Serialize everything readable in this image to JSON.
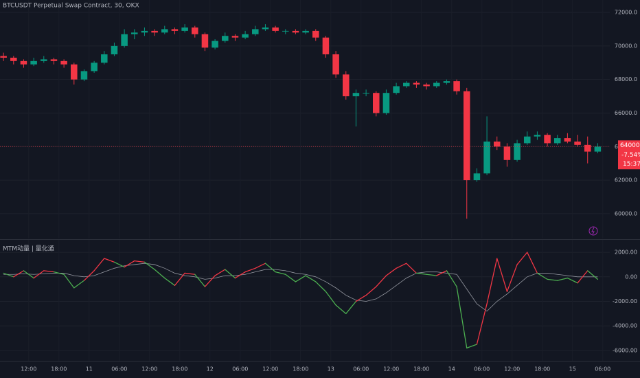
{
  "chart_data": [
    {
      "type": "candlestick",
      "title": "BTCUSDT Perpetual Swap Contract, 30, OKX",
      "up_color": "#089981",
      "down_color": "#f23645",
      "grid": true,
      "x": [
        7,
        9,
        11,
        13,
        15,
        17,
        19,
        21,
        23,
        25,
        27,
        29,
        31,
        33,
        35,
        37,
        39,
        41,
        43,
        45,
        47,
        49,
        51,
        53,
        55,
        57,
        59,
        61,
        63,
        65,
        67,
        69,
        71,
        73,
        75,
        77,
        79,
        81,
        83,
        85,
        87,
        89,
        91,
        93,
        95,
        97,
        99,
        101,
        103,
        105,
        107,
        109,
        111,
        113,
        115,
        117,
        119,
        121,
        123,
        125
      ],
      "open": [
        69400,
        69300,
        69100,
        68900,
        69100,
        69200,
        69100,
        68900,
        68000,
        68500,
        69000,
        69500,
        70000,
        70700,
        70800,
        70900,
        70800,
        71000,
        70900,
        71100,
        70700,
        69900,
        70300,
        70600,
        70500,
        70700,
        71000,
        71100,
        70900,
        70900,
        70800,
        70900,
        70500,
        69500,
        68300,
        67000,
        67200,
        67200,
        66000,
        67200,
        67600,
        67800,
        67700,
        67600,
        67800,
        67900,
        67300,
        62000,
        62400,
        64300,
        64000,
        63200,
        64200,
        64600,
        64700,
        64200,
        64500,
        64300,
        64100,
        63700
      ],
      "high": [
        69600,
        69400,
        69200,
        69300,
        69400,
        69300,
        69200,
        69000,
        68600,
        69100,
        69700,
        70200,
        71000,
        71000,
        71100,
        71000,
        71200,
        71100,
        71300,
        71200,
        70800,
        70400,
        70800,
        70700,
        70900,
        71200,
        71300,
        71200,
        71000,
        71000,
        71000,
        71000,
        70600,
        69700,
        68500,
        67400,
        67400,
        67300,
        67400,
        67800,
        67900,
        67900,
        67800,
        67900,
        68000,
        68000,
        67500,
        62700,
        65800,
        64600,
        64200,
        64400,
        64900,
        64900,
        64800,
        64700,
        64800,
        64700,
        64600,
        64200
      ],
      "low": [
        69100,
        68900,
        68700,
        68800,
        69000,
        68900,
        68700,
        67700,
        67900,
        68400,
        68900,
        69400,
        69900,
        70400,
        70600,
        70600,
        70700,
        70700,
        70800,
        70500,
        69700,
        69800,
        70200,
        70300,
        70400,
        70600,
        70900,
        70800,
        70700,
        70700,
        70700,
        70300,
        69300,
        68100,
        66800,
        65200,
        67000,
        65800,
        65900,
        67100,
        67500,
        67500,
        67400,
        67500,
        67700,
        67100,
        59700,
        61900,
        62300,
        63800,
        62800,
        63100,
        64100,
        64400,
        64000,
        64100,
        64200,
        64000,
        63000,
        63600
      ],
      "close": [
        69300,
        69100,
        68900,
        69100,
        69200,
        69100,
        68900,
        68000,
        68500,
        69000,
        69500,
        70000,
        70700,
        70800,
        70900,
        70800,
        71000,
        70900,
        71100,
        70700,
        69900,
        70300,
        70600,
        70500,
        70700,
        71000,
        71100,
        70900,
        70900,
        70800,
        70900,
        70500,
        69500,
        68300,
        67000,
        67200,
        67200,
        66000,
        67200,
        67600,
        67800,
        67700,
        67600,
        67800,
        67900,
        67300,
        62000,
        62400,
        64300,
        64000,
        63200,
        64200,
        64600,
        64700,
        64200,
        64500,
        64300,
        64100,
        63700,
        64000
      ],
      "xlim": [
        6.3,
        133.4
      ],
      "ylim": [
        58520,
        72740
      ],
      "yticks": [
        {
          "value": 60000,
          "label": "60000.0"
        },
        {
          "value": 62000,
          "label": "62000.0"
        },
        {
          "value": 64000,
          "label": "64000.0"
        },
        {
          "value": 66000,
          "label": "66000.0"
        },
        {
          "value": 68000,
          "label": "68000.0"
        },
        {
          "value": 70000,
          "label": "70000.0"
        },
        {
          "value": 72000,
          "label": "72000.0"
        }
      ],
      "last_price": {
        "value": 64000,
        "label": "64000.0"
      },
      "change": "-7.54%",
      "countdown": "15:37"
    },
    {
      "type": "line",
      "title": "MTM动量 | 量化通",
      "grid": true,
      "x": [
        7,
        9,
        11,
        13,
        15,
        17,
        19,
        21,
        23,
        25,
        27,
        29,
        31,
        33,
        35,
        37,
        39,
        41,
        43,
        45,
        47,
        49,
        51,
        53,
        55,
        57,
        59,
        61,
        63,
        65,
        67,
        69,
        71,
        73,
        75,
        77,
        79,
        81,
        83,
        85,
        87,
        89,
        91,
        93,
        95,
        97,
        99,
        101,
        103,
        105,
        107,
        109,
        111,
        113,
        115,
        117,
        119,
        121,
        123,
        125
      ],
      "series": [
        {
          "color": "#f23645",
          "below_color": "#4caf50",
          "values": [
            300,
            0,
            500,
            -100,
            500,
            400,
            200,
            -900,
            -300,
            500,
            1500,
            1200,
            800,
            1300,
            1200,
            600,
            -100,
            -700,
            300,
            200,
            -800,
            100,
            600,
            -100,
            400,
            700,
            1100,
            400,
            200,
            -400,
            100,
            -400,
            -1200,
            -2300,
            -3000,
            -2000,
            -1500,
            -800,
            100,
            700,
            1100,
            300,
            200,
            100,
            500,
            -800,
            -5800,
            -5500,
            -2200,
            1500,
            -1200,
            1000,
            2000,
            300,
            -200,
            -300,
            -100,
            -500,
            500,
            -200
          ]
        },
        {
          "color": "#9598a1",
          "values": [
            200,
            200,
            250,
            200,
            250,
            300,
            300,
            100,
            0,
            100,
            400,
            700,
            900,
            1000,
            1100,
            1000,
            700,
            300,
            100,
            0,
            -200,
            -100,
            100,
            100,
            200,
            400,
            600,
            600,
            500,
            300,
            200,
            0,
            -400,
            -900,
            -1500,
            -1900,
            -2000,
            -1800,
            -1300,
            -700,
            -100,
            300,
            400,
            400,
            300,
            200,
            -1000,
            -2200,
            -2800,
            -2000,
            -1400,
            -700,
            0,
            300,
            300,
            200,
            100,
            0,
            0,
            0
          ]
        }
      ],
      "xlim": [
        6.3,
        133.4
      ],
      "ylim": [
        -6845,
        3014
      ],
      "yticks": [
        {
          "value": -6000,
          "label": "-6000.00"
        },
        {
          "value": -4000,
          "label": "-4000.00"
        },
        {
          "value": -2000,
          "label": "-2000.00"
        },
        {
          "value": 0,
          "label": "0.00"
        },
        {
          "value": 2000,
          "label": "2000.00"
        }
      ],
      "xticks": [
        {
          "value": 12,
          "label": "12:00"
        },
        {
          "value": 18,
          "label": "18:00"
        },
        {
          "value": 24,
          "label": "11"
        },
        {
          "value": 30,
          "label": "06:00"
        },
        {
          "value": 36,
          "label": "12:00"
        },
        {
          "value": 42,
          "label": "18:00"
        },
        {
          "value": 48,
          "label": "12"
        },
        {
          "value": 54,
          "label": "06:00"
        },
        {
          "value": 60,
          "label": "12:00"
        },
        {
          "value": 66,
          "label": "18:00"
        },
        {
          "value": 72,
          "label": "13"
        },
        {
          "value": 78,
          "label": "06:00"
        },
        {
          "value": 84,
          "label": "12:00"
        },
        {
          "value": 90,
          "label": "18:00"
        },
        {
          "value": 96,
          "label": "14"
        },
        {
          "value": 102,
          "label": "06:00"
        },
        {
          "value": 108,
          "label": "12:00"
        },
        {
          "value": 114,
          "label": "18:00"
        },
        {
          "value": 120,
          "label": "15"
        },
        {
          "value": 126,
          "label": "06:00"
        }
      ]
    }
  ]
}
